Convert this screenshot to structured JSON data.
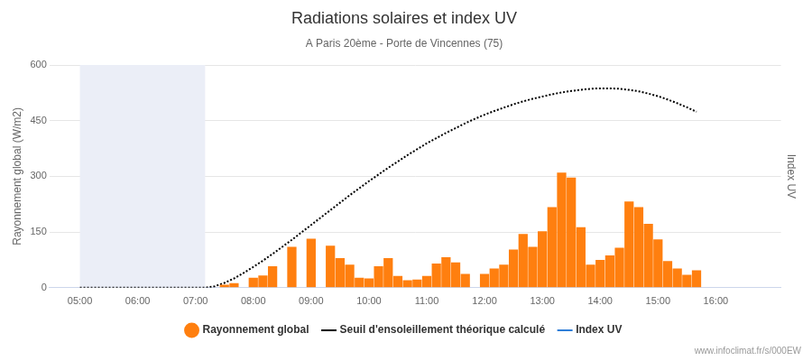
{
  "chart_data": {
    "type": "bar",
    "title": "Radiations solaires et index UV",
    "subtitle": "A Paris 20ème - Porte de Vincennes (75)",
    "ylabel": "Rayonnement global (W/m2)",
    "y2label": "Index UV",
    "credit": "www.infoclimat.fr/s/000EW",
    "x": [
      300,
      310,
      320,
      330,
      340,
      350,
      360,
      370,
      380,
      390,
      400,
      410,
      420,
      430,
      440,
      450,
      460,
      470,
      480,
      490,
      500,
      510,
      520,
      530,
      540,
      550,
      560,
      570,
      580,
      590,
      600,
      610,
      620,
      630,
      640,
      650,
      660,
      670,
      680,
      690,
      700,
      710,
      720,
      730,
      740,
      750,
      760,
      770,
      780,
      790,
      800,
      810,
      820,
      830,
      840,
      850,
      860,
      870,
      880,
      890,
      900,
      910,
      920,
      930,
      940
    ],
    "xlim": [
      300,
      996
    ],
    "xticks": [
      {
        "value": 300,
        "label": "05:00"
      },
      {
        "value": 360,
        "label": "06:00"
      },
      {
        "value": 420,
        "label": "07:00"
      },
      {
        "value": 480,
        "label": "08:00"
      },
      {
        "value": 540,
        "label": "09:00"
      },
      {
        "value": 600,
        "label": "10:00"
      },
      {
        "value": 660,
        "label": "11:00"
      },
      {
        "value": 720,
        "label": "12:00"
      },
      {
        "value": 780,
        "label": "13:00"
      },
      {
        "value": 840,
        "label": "14:00"
      },
      {
        "value": 900,
        "label": "15:00"
      },
      {
        "value": 960,
        "label": "16:00"
      }
    ],
    "ylim": [
      0,
      600
    ],
    "yticks": [
      0,
      150,
      300,
      450,
      600
    ],
    "grid": true,
    "legend": "bottom",
    "band": {
      "from": 300,
      "to": 430,
      "color": "#ebeef7"
    },
    "series": [
      {
        "name": "Rayonnement global",
        "type": "bar",
        "color": "#ff7f0f",
        "marker": "circle",
        "values": [
          null,
          null,
          null,
          null,
          null,
          null,
          null,
          null,
          null,
          null,
          null,
          null,
          null,
          null,
          null,
          8,
          12,
          null,
          27,
          33,
          58,
          null,
          110,
          null,
          132,
          null,
          113,
          80,
          62,
          27,
          25,
          58,
          80,
          32,
          20,
          22,
          32,
          65,
          82,
          68,
          37,
          null,
          37,
          52,
          62,
          103,
          145,
          110,
          152,
          217,
          310,
          297,
          163,
          62,
          75,
          87,
          108,
          232,
          217,
          172,
          130,
          72,
          52,
          35,
          47
        ]
      },
      {
        "name": "Seuil d'ensoleillement théorique calculé",
        "type": "line",
        "color": "#000000",
        "line_style": "dotted",
        "values": [
          0,
          0,
          0,
          0,
          0,
          0,
          0,
          0,
          0,
          0,
          0,
          0,
          0,
          0,
          4,
          13,
          25,
          40,
          56,
          73,
          91,
          110,
          129,
          149,
          169,
          189,
          209,
          229,
          249,
          268,
          287,
          305,
          323,
          340,
          357,
          373,
          389,
          403,
          417,
          430,
          443,
          455,
          466,
          476,
          485,
          494,
          502,
          509,
          515,
          521,
          526,
          530,
          533,
          536,
          537,
          537,
          536,
          533,
          529,
          523,
          516,
          507,
          497,
          486,
          474
        ]
      },
      {
        "name": "Index UV",
        "type": "line",
        "color": "#2f7ed8",
        "line_style": "solid",
        "values": [
          null,
          null,
          null,
          null,
          null,
          null,
          null,
          null,
          null,
          null,
          null,
          null,
          null,
          null,
          null,
          null,
          null,
          null,
          null,
          null,
          null,
          null,
          null,
          null,
          null,
          null,
          null,
          null,
          null,
          null,
          null,
          null,
          null,
          null,
          null,
          null,
          null,
          null,
          null,
          null,
          null,
          null,
          null,
          null,
          null,
          null,
          null,
          null,
          null,
          null,
          null,
          null,
          null,
          null,
          null,
          null,
          null,
          null,
          null,
          null,
          null,
          null,
          null,
          null,
          null
        ]
      }
    ]
  }
}
